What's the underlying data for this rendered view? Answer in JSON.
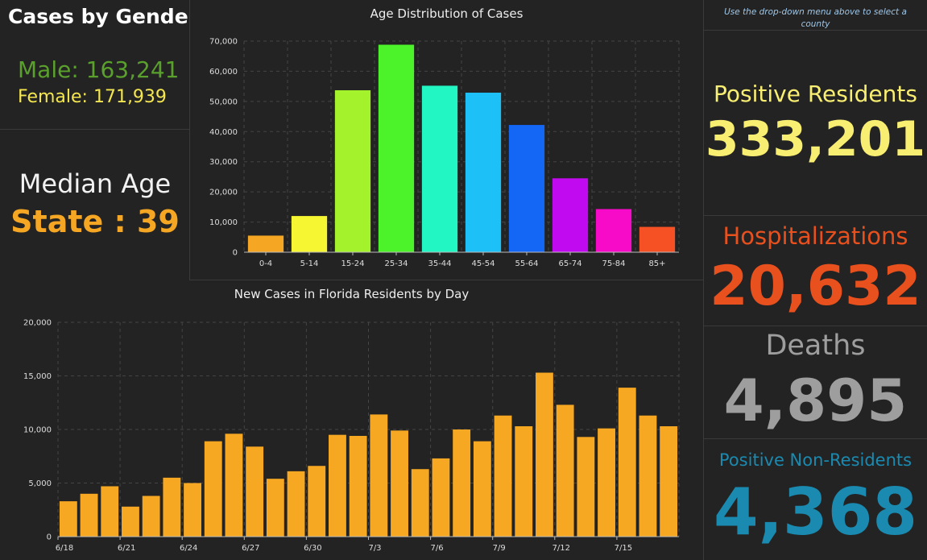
{
  "gender": {
    "title": "Cases by Gender",
    "male": "Male: 163,241",
    "female": "Female: 171,939"
  },
  "median_age": {
    "title": "Median Age",
    "value": "State : 39"
  },
  "note": "Use the drop-down menu above to select a county",
  "kpis": {
    "positive_residents": {
      "label": "Positive Residents",
      "value": "333,201",
      "color": "#f8ee72"
    },
    "hospitalizations": {
      "label": "Hospitalizations",
      "value": "20,632",
      "color": "#e8501e"
    },
    "deaths": {
      "label": "Deaths",
      "value": "4,895",
      "color": "#9e9e9e"
    },
    "non_residents": {
      "label": "Positive Non-Residents",
      "value": "4,368",
      "color": "#1a8ab0"
    }
  },
  "chart_data": [
    {
      "type": "bar",
      "title": "Age Distribution of Cases",
      "categories": [
        "0-4",
        "5-14",
        "15-24",
        "25-34",
        "35-44",
        "45-54",
        "55-64",
        "65-74",
        "75-84",
        "85+"
      ],
      "values": [
        5500,
        12000,
        53700,
        68800,
        55200,
        52900,
        42200,
        24500,
        14300,
        8400
      ],
      "colors": [
        "#f5a623",
        "#f6f632",
        "#a4f22c",
        "#4cf22a",
        "#22f7c4",
        "#1ec1f7",
        "#1466f5",
        "#c20af0",
        "#f70ac8",
        "#f55125"
      ],
      "ylim": [
        0,
        70000
      ],
      "yticks": [
        "0",
        "10,000",
        "20,000",
        "30,000",
        "40,000",
        "50,000",
        "60,000",
        "70,000"
      ],
      "grid": true
    },
    {
      "type": "bar",
      "title": "New Cases in Florida Residents by Day",
      "categories": [
        "6/18",
        "6/19",
        "6/20",
        "6/21",
        "6/22",
        "6/23",
        "6/24",
        "6/25",
        "6/26",
        "6/27",
        "6/28",
        "6/29",
        "6/30",
        "7/1",
        "7/2",
        "7/3",
        "7/4",
        "7/5",
        "7/6",
        "7/7",
        "7/8",
        "7/9",
        "7/10",
        "7/11",
        "7/12",
        "7/13",
        "7/14",
        "7/15",
        "7/16",
        "7/17"
      ],
      "values": [
        3300,
        4000,
        4700,
        2800,
        3800,
        5500,
        5000,
        8900,
        9600,
        8400,
        5400,
        6100,
        6600,
        9500,
        9400,
        11400,
        9900,
        6300,
        7300,
        10000,
        8900,
        11300,
        10300,
        15300,
        12300,
        9300,
        10100,
        13900,
        11300,
        10300
      ],
      "xtick_labels": [
        "6/18",
        "6/21",
        "6/24",
        "6/27",
        "6/30",
        "7/3",
        "7/6",
        "7/9",
        "7/12",
        "7/15"
      ],
      "color": "#f7a823",
      "ylim": [
        0,
        20000
      ],
      "yticks": [
        "0",
        "5,000",
        "10,000",
        "15,000",
        "20,000"
      ],
      "grid": true
    }
  ]
}
